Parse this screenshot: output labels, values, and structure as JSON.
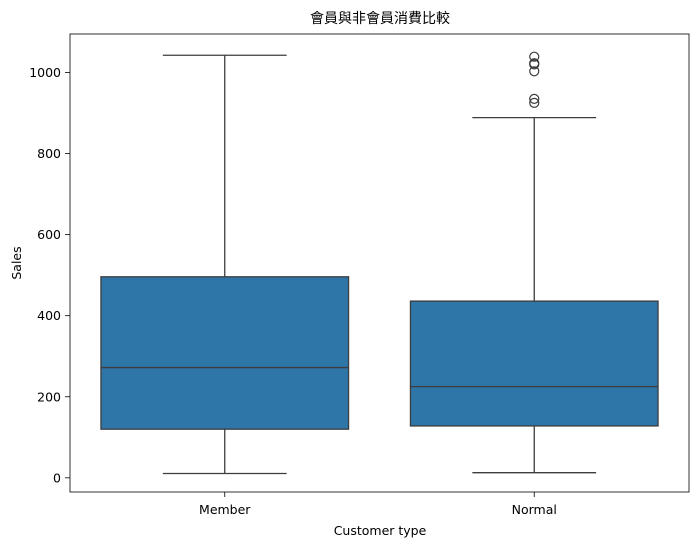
{
  "chart_data": {
    "type": "box",
    "title": "會員與非會員消費比較",
    "xlabel": "Customer type",
    "ylabel": "Sales",
    "ylim": [
      -35,
      1095
    ],
    "yticks": [
      0,
      200,
      400,
      600,
      800,
      1000
    ],
    "categories": [
      "Member",
      "Normal"
    ],
    "box_color": "#2e75a8",
    "line_color": "#3d3d3d",
    "grid": false,
    "boxes": [
      {
        "category": "Member",
        "whisker_low": 10.7,
        "q1": 120.0,
        "median": 272.0,
        "q3": 496.0,
        "whisker_high": 1042.6,
        "outliers": []
      },
      {
        "category": "Normal",
        "whisker_low": 12.7,
        "q1": 128.0,
        "median": 225.0,
        "q3": 436.0,
        "whisker_high": 888.6,
        "outliers": [
          925.0,
          935.0,
          1003.0,
          1020.0,
          1023.0,
          1039.0
        ]
      }
    ]
  }
}
